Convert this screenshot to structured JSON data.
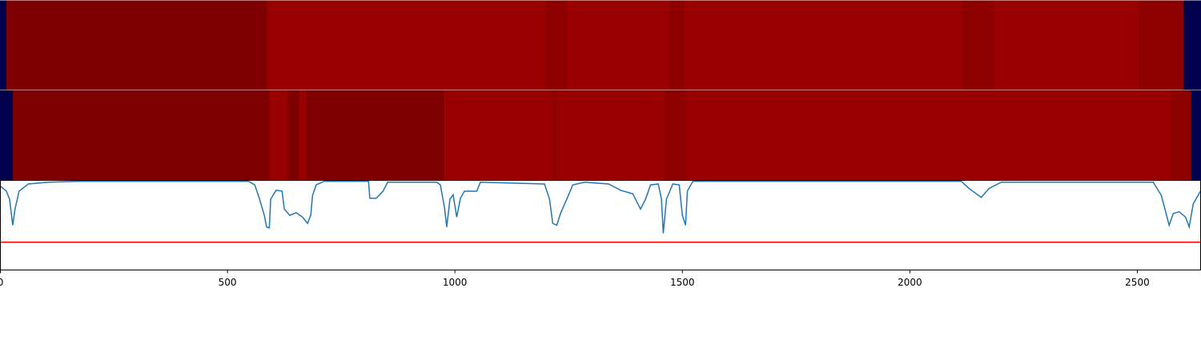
{
  "chart_data": [
    {
      "type": "heatmap",
      "xlim": [
        0,
        2640
      ],
      "cmap": [
        {
          "value": 0,
          "color": "#00004c"
        },
        {
          "value": 0.9,
          "color": "#990000"
        },
        {
          "value": 1,
          "color": "#7f0000"
        }
      ],
      "segments": [
        {
          "start": 0,
          "end": 14,
          "value": 0
        },
        {
          "start": 14,
          "end": 586,
          "value": 1
        },
        {
          "start": 586,
          "end": 1199,
          "value": 0.9
        },
        {
          "start": 1199,
          "end": 1246,
          "value": 0.95
        },
        {
          "start": 1246,
          "end": 1472,
          "value": 0.9
        },
        {
          "start": 1472,
          "end": 1505,
          "value": 0.95
        },
        {
          "start": 1505,
          "end": 2116,
          "value": 0.9
        },
        {
          "start": 2116,
          "end": 2185,
          "value": 0.95
        },
        {
          "start": 2185,
          "end": 2502,
          "value": 0.9
        },
        {
          "start": 2502,
          "end": 2602,
          "value": 0.95
        },
        {
          "start": 2602,
          "end": 2640,
          "value": 0
        }
      ]
    },
    {
      "type": "heatmap",
      "xlim": [
        0,
        2640
      ],
      "cmap": [
        {
          "value": 0,
          "color": "#00004c"
        },
        {
          "value": 0.9,
          "color": "#990000"
        },
        {
          "value": 1,
          "color": "#7f0000"
        }
      ],
      "segments": [
        {
          "start": 0,
          "end": 28,
          "value": 0
        },
        {
          "start": 28,
          "end": 592,
          "value": 1
        },
        {
          "start": 592,
          "end": 632,
          "value": 0.9
        },
        {
          "start": 632,
          "end": 657,
          "value": 1
        },
        {
          "start": 657,
          "end": 673,
          "value": 0.9
        },
        {
          "start": 673,
          "end": 977,
          "value": 1
        },
        {
          "start": 977,
          "end": 1215,
          "value": 0.9
        },
        {
          "start": 1215,
          "end": 1224,
          "value": 0.95
        },
        {
          "start": 1224,
          "end": 1461,
          "value": 0.9
        },
        {
          "start": 1461,
          "end": 1509,
          "value": 0.95
        },
        {
          "start": 1509,
          "end": 2574,
          "value": 0.9
        },
        {
          "start": 2574,
          "end": 2618,
          "value": 0.95
        },
        {
          "start": 2618,
          "end": 2640,
          "value": 0
        }
      ]
    },
    {
      "type": "line",
      "xlim": [
        0,
        2640
      ],
      "ylim": [
        0,
        1
      ],
      "xticks": [
        0,
        500,
        1000,
        1500,
        2000,
        2500
      ],
      "color": "#1f77b4",
      "hline": 0.31,
      "hline_color": "#ff0000",
      "x": [
        0,
        14,
        21,
        28,
        33,
        42,
        62,
        106,
        176,
        546,
        560,
        570,
        581,
        586,
        592,
        595,
        607,
        620,
        625,
        637,
        651,
        665,
        676,
        683,
        687,
        695,
        713,
        810,
        813,
        827,
        842,
        852,
        960,
        968,
        977,
        982,
        989,
        996,
        1004,
        1012,
        1021,
        1048,
        1056,
        1197,
        1208,
        1215,
        1224,
        1232,
        1250,
        1259,
        1285,
        1338,
        1364,
        1391,
        1408,
        1419,
        1430,
        1447,
        1454,
        1458,
        1465,
        1479,
        1493,
        1500,
        1507,
        1511,
        1523,
        2113,
        2130,
        2157,
        2174,
        2201,
        2535,
        2553,
        2570,
        2579,
        2592,
        2606,
        2614,
        2623,
        2640
      ],
      "values": [
        0.94,
        0.88,
        0.79,
        0.5,
        0.68,
        0.88,
        0.96,
        0.98,
        0.99,
        0.99,
        0.95,
        0.8,
        0.61,
        0.48,
        0.47,
        0.79,
        0.89,
        0.88,
        0.68,
        0.61,
        0.64,
        0.59,
        0.52,
        0.61,
        0.83,
        0.95,
        0.99,
        0.99,
        0.8,
        0.8,
        0.88,
        0.98,
        0.98,
        0.95,
        0.7,
        0.48,
        0.79,
        0.84,
        0.59,
        0.8,
        0.88,
        0.88,
        0.98,
        0.96,
        0.79,
        0.52,
        0.5,
        0.63,
        0.84,
        0.95,
        0.98,
        0.96,
        0.89,
        0.85,
        0.68,
        0.79,
        0.95,
        0.96,
        0.79,
        0.41,
        0.79,
        0.96,
        0.95,
        0.61,
        0.5,
        0.88,
        0.99,
        0.99,
        0.91,
        0.81,
        0.91,
        0.98,
        0.98,
        0.83,
        0.5,
        0.63,
        0.65,
        0.59,
        0.48,
        0.74,
        0.89
      ]
    }
  ]
}
